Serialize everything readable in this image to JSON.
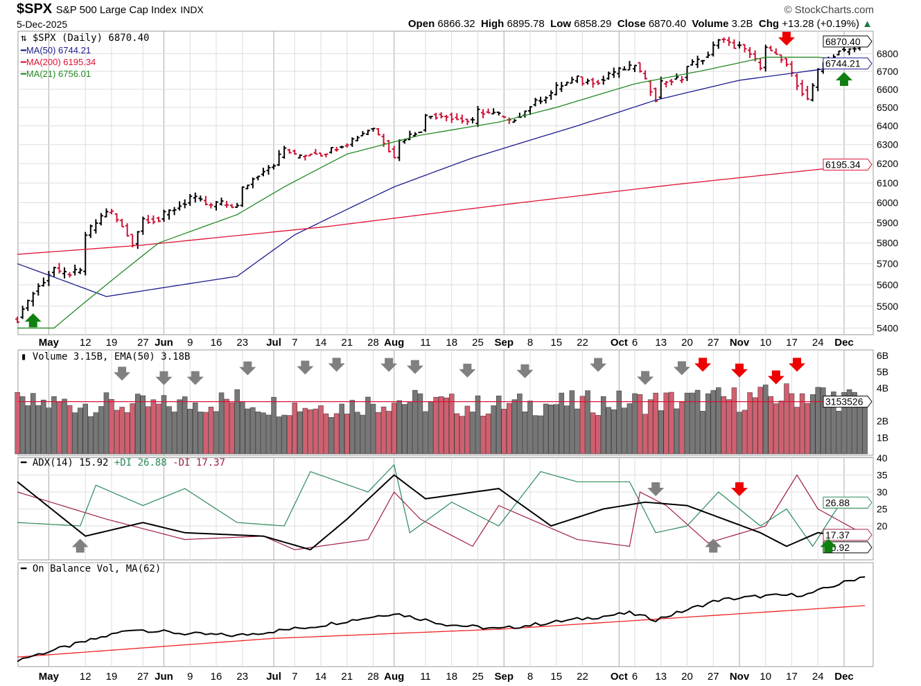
{
  "header": {
    "symbol": "$SPX",
    "name": "S&P 500 Large Cap Index",
    "exchange": "INDX",
    "date": "5-Dec-2025",
    "brand": "StockCharts.com",
    "open_label": "Open",
    "open": "6866.32",
    "high_label": "High",
    "high": "6895.78",
    "low_label": "Low",
    "low": "6858.29",
    "close_label": "Close",
    "close": "6870.40",
    "volume_label": "Volume",
    "volume": "3.2B",
    "chg_label": "Chg",
    "chg": "+13.28 (+0.19%)"
  },
  "legend": {
    "price": "$SPX (Daily) 6870.40",
    "ma50": "MA(50) 6744.21",
    "ma200": "MA(200) 6195.34",
    "ma21": "MA(21) 6756.01",
    "volume": "Volume 3.15B, EMA(50) 3.18B",
    "adx": "ADX(14) 15.92",
    "pdi": "+DI 26.88",
    "mdi": "-DI 17.37",
    "obv": "On Balance Vol, MA(62)"
  },
  "colors": {
    "up": "#000000",
    "down": "#cc1133",
    "ma50": "#1a1a8c",
    "ma200": "#dd1133",
    "ma21": "#228822",
    "vol_up": "#777777",
    "vol_down": "#d06070",
    "adx": "#000000",
    "pdi": "#2a8a5a",
    "mdi": "#a02040",
    "obv_ma": "#ee2222",
    "arrow_gray": "#808080",
    "arrow_red": "#ee0000",
    "arrow_green": "#108010"
  },
  "chart_data": [
    {
      "type": "ohlc",
      "scale": "log",
      "ylim": [
        5370,
        6930
      ],
      "yticks": [
        5400,
        5500,
        5600,
        5700,
        5800,
        5900,
        6000,
        6100,
        6200,
        6300,
        6400,
        6500,
        6600,
        6700,
        6800
      ],
      "value_tags": [
        {
          "text": "6870.40",
          "value": 6870.4
        },
        {
          "text": "6744.21",
          "value": 6744.21
        },
        {
          "text": "6195.34",
          "value": 6195.34
        }
      ],
      "closes": [
        [
          "2025-04-23",
          5440
        ],
        [
          "2025-04-25",
          5530
        ],
        [
          "2025-04-28",
          5560
        ],
        [
          "2025-05-02",
          5680
        ],
        [
          "2025-05-05",
          5650
        ],
        [
          "2025-05-09",
          5660
        ],
        [
          "2025-05-12",
          5840
        ],
        [
          "2025-05-16",
          5960
        ],
        [
          "2025-05-19",
          5950
        ],
        [
          "2025-05-23",
          5800
        ],
        [
          "2025-05-27",
          5920
        ],
        [
          "2025-05-30",
          5910
        ],
        [
          "2025-06-02",
          5940
        ],
        [
          "2025-06-06",
          6000
        ],
        [
          "2025-06-09",
          6030
        ],
        [
          "2025-06-13",
          5980
        ],
        [
          "2025-06-16",
          6000
        ],
        [
          "2025-06-20",
          5980
        ],
        [
          "2025-06-23",
          6070
        ],
        [
          "2025-06-27",
          6170
        ],
        [
          "2025-07-01",
          6200
        ],
        [
          "2025-07-03",
          6280
        ],
        [
          "2025-07-07",
          6240
        ],
        [
          "2025-07-11",
          6260
        ],
        [
          "2025-07-14",
          6250
        ],
        [
          "2025-07-18",
          6300
        ],
        [
          "2025-07-21",
          6310
        ],
        [
          "2025-07-25",
          6380
        ],
        [
          "2025-07-28",
          6390
        ],
        [
          "2025-08-01",
          6240
        ],
        [
          "2025-08-04",
          6320
        ],
        [
          "2025-08-08",
          6380
        ],
        [
          "2025-08-11",
          6450
        ],
        [
          "2025-08-15",
          6460
        ],
        [
          "2025-08-18",
          6440
        ],
        [
          "2025-08-22",
          6420
        ],
        [
          "2025-08-25",
          6480
        ],
        [
          "2025-08-29",
          6460
        ],
        [
          "2025-09-02",
          6420
        ],
        [
          "2025-09-05",
          6480
        ],
        [
          "2025-09-08",
          6510
        ],
        [
          "2025-09-12",
          6580
        ],
        [
          "2025-09-15",
          6610
        ],
        [
          "2025-09-19",
          6660
        ],
        [
          "2025-09-22",
          6640
        ],
        [
          "2025-09-26",
          6650
        ],
        [
          "2025-09-29",
          6690
        ],
        [
          "2025-10-03",
          6720
        ],
        [
          "2025-10-06",
          6740
        ],
        [
          "2025-10-10",
          6550
        ],
        [
          "2025-10-13",
          6640
        ],
        [
          "2025-10-17",
          6660
        ],
        [
          "2025-10-20",
          6730
        ],
        [
          "2025-10-24",
          6790
        ],
        [
          "2025-10-28",
          6890
        ],
        [
          "2025-10-31",
          6840
        ],
        [
          "2025-11-03",
          6850
        ],
        [
          "2025-11-07",
          6730
        ],
        [
          "2025-11-10",
          6830
        ],
        [
          "2025-11-14",
          6740
        ],
        [
          "2025-11-17",
          6680
        ],
        [
          "2025-11-20",
          6540
        ],
        [
          "2025-11-24",
          6700
        ],
        [
          "2025-11-28",
          6820
        ],
        [
          "2025-12-01",
          6810
        ],
        [
          "2025-12-05",
          6870.4
        ]
      ],
      "ma50": [
        [
          "2025-04-23",
          5700
        ],
        [
          "2025-05-16",
          5545
        ],
        [
          "2025-06-20",
          5640
        ],
        [
          "2025-07-07",
          5840
        ],
        [
          "2025-08-01",
          6080
        ],
        [
          "2025-08-22",
          6230
        ],
        [
          "2025-09-19",
          6400
        ],
        [
          "2025-10-10",
          6540
        ],
        [
          "2025-11-03",
          6650
        ],
        [
          "2025-12-05",
          6744.21
        ]
      ],
      "ma200": [
        [
          "2025-04-23",
          5745
        ],
        [
          "2025-05-27",
          5790
        ],
        [
          "2025-07-15",
          5880
        ],
        [
          "2025-09-01",
          5990
        ],
        [
          "2025-10-15",
          6090
        ],
        [
          "2025-12-05",
          6195.34
        ]
      ],
      "ma21": [
        [
          "2025-04-23",
          5400
        ],
        [
          "2025-05-02",
          5400
        ],
        [
          "2025-05-16",
          5600
        ],
        [
          "2025-05-30",
          5800
        ],
        [
          "2025-06-20",
          5940
        ],
        [
          "2025-07-03",
          6080
        ],
        [
          "2025-07-21",
          6250
        ],
        [
          "2025-08-08",
          6350
        ],
        [
          "2025-08-29",
          6420
        ],
        [
          "2025-09-15",
          6500
        ],
        [
          "2025-10-06",
          6630
        ],
        [
          "2025-10-24",
          6710
        ],
        [
          "2025-11-10",
          6780
        ],
        [
          "2025-11-24",
          6780
        ],
        [
          "2025-12-05",
          6756.01
        ]
      ]
    },
    {
      "type": "bar",
      "ylim": [
        0,
        6.2
      ],
      "yticks": [
        {
          "v": 1,
          "t": "1B"
        },
        {
          "v": 2,
          "t": "2B"
        },
        {
          "v": 4,
          "t": "4B"
        },
        {
          "v": 5,
          "t": "5B"
        },
        {
          "v": 6,
          "t": "6B"
        }
      ],
      "unit": "billions",
      "value_tag": "3153526",
      "ema": 3.18,
      "volume": [
        [
          "2025-04-23",
          3.0
        ],
        [
          "2025-05-05",
          3.1
        ],
        [
          "2025-05-16",
          3.0
        ],
        [
          "2025-05-30",
          2.9
        ],
        [
          "2025-06-20",
          3.3
        ],
        [
          "2025-06-27",
          3.0
        ],
        [
          "2025-07-18",
          2.9
        ],
        [
          "2025-08-01",
          3.3
        ],
        [
          "2025-08-22",
          2.9
        ],
        [
          "2025-09-19",
          3.1
        ],
        [
          "2025-10-10",
          3.2
        ],
        [
          "2025-11-07",
          3.4
        ],
        [
          "2025-11-21",
          3.7
        ],
        [
          "2025-12-05",
          3.15
        ]
      ]
    },
    {
      "type": "line",
      "ylim": [
        10,
        40
      ],
      "yticks": [
        20,
        25,
        30,
        35,
        40
      ],
      "value_tags": [
        {
          "text": "26.88",
          "value": 26.88
        },
        {
          "text": "17.37",
          "value": 17.37
        },
        {
          "text": "15.92",
          "value": 15.92
        }
      ],
      "adx": [
        [
          "2025-04-23",
          33
        ],
        [
          "2025-05-12",
          17
        ],
        [
          "2025-05-27",
          21
        ],
        [
          "2025-06-06",
          18
        ],
        [
          "2025-06-27",
          17
        ],
        [
          "2025-07-10",
          13
        ],
        [
          "2025-07-21",
          22
        ],
        [
          "2025-08-01",
          35
        ],
        [
          "2025-08-11",
          28
        ],
        [
          "2025-08-29",
          31
        ],
        [
          "2025-09-12",
          20
        ],
        [
          "2025-09-26",
          25
        ],
        [
          "2025-10-08",
          27
        ],
        [
          "2025-10-20",
          26
        ],
        [
          "2025-11-07",
          18
        ],
        [
          "2025-11-14",
          14
        ],
        [
          "2025-11-24",
          18
        ],
        [
          "2025-12-05",
          16
        ]
      ],
      "pdi": [
        [
          "2025-04-23",
          21
        ],
        [
          "2025-05-09",
          20
        ],
        [
          "2025-05-14",
          32
        ],
        [
          "2025-05-27",
          26
        ],
        [
          "2025-06-06",
          31
        ],
        [
          "2025-06-20",
          21
        ],
        [
          "2025-07-03",
          20
        ],
        [
          "2025-07-10",
          36
        ],
        [
          "2025-07-25",
          30
        ],
        [
          "2025-08-01",
          38
        ],
        [
          "2025-08-06",
          18
        ],
        [
          "2025-08-18",
          27
        ],
        [
          "2025-08-29",
          20
        ],
        [
          "2025-09-10",
          36
        ],
        [
          "2025-09-19",
          33
        ],
        [
          "2025-10-03",
          33
        ],
        [
          "2025-10-10",
          18
        ],
        [
          "2025-10-20",
          20
        ],
        [
          "2025-10-28",
          30
        ],
        [
          "2025-11-07",
          20
        ],
        [
          "2025-11-14",
          25
        ],
        [
          "2025-11-21",
          14
        ],
        [
          "2025-11-28",
          26
        ],
        [
          "2025-12-05",
          26.88
        ]
      ],
      "mdi": [
        [
          "2025-04-23",
          30
        ],
        [
          "2025-05-16",
          22
        ],
        [
          "2025-06-06",
          16
        ],
        [
          "2025-06-27",
          17
        ],
        [
          "2025-07-07",
          13
        ],
        [
          "2025-07-25",
          16
        ],
        [
          "2025-08-01",
          30
        ],
        [
          "2025-08-08",
          22
        ],
        [
          "2025-08-22",
          14
        ],
        [
          "2025-08-29",
          26
        ],
        [
          "2025-09-19",
          16
        ],
        [
          "2025-10-03",
          14
        ],
        [
          "2025-10-07",
          30
        ],
        [
          "2025-10-14",
          26
        ],
        [
          "2025-10-24",
          15
        ],
        [
          "2025-11-10",
          20
        ],
        [
          "2025-11-18",
          35
        ],
        [
          "2025-11-24",
          25
        ],
        [
          "2025-12-05",
          17.37
        ]
      ]
    },
    {
      "type": "line",
      "unit": "relative",
      "obv": [
        [
          "2025-04-23",
          2
        ],
        [
          "2025-05-09",
          20
        ],
        [
          "2025-05-23",
          35
        ],
        [
          "2025-06-06",
          30
        ],
        [
          "2025-06-20",
          28
        ],
        [
          "2025-07-11",
          38
        ],
        [
          "2025-08-01",
          52
        ],
        [
          "2025-08-15",
          40
        ],
        [
          "2025-08-29",
          35
        ],
        [
          "2025-09-12",
          42
        ],
        [
          "2025-10-03",
          52
        ],
        [
          "2025-10-10",
          45
        ],
        [
          "2025-10-28",
          66
        ],
        [
          "2025-11-07",
          70
        ],
        [
          "2025-11-20",
          72
        ],
        [
          "2025-12-05",
          92
        ]
      ],
      "obv_ma": [
        [
          "2025-04-23",
          5
        ],
        [
          "2025-07-01",
          25
        ],
        [
          "2025-09-01",
          35
        ],
        [
          "2025-12-05",
          60
        ]
      ]
    }
  ],
  "xticks": [
    {
      "d": "2025-05-01",
      "t": "May",
      "m": true
    },
    {
      "d": "2025-05-12",
      "t": "12"
    },
    {
      "d": "2025-05-19",
      "t": "19"
    },
    {
      "d": "2025-05-27",
      "t": "27"
    },
    {
      "d": "2025-06-02",
      "t": "Jun",
      "m": true
    },
    {
      "d": "2025-06-09",
      "t": "9"
    },
    {
      "d": "2025-06-16",
      "t": "16"
    },
    {
      "d": "2025-06-23",
      "t": "23"
    },
    {
      "d": "2025-07-01",
      "t": "Jul",
      "m": true
    },
    {
      "d": "2025-07-07",
      "t": "7"
    },
    {
      "d": "2025-07-14",
      "t": "14"
    },
    {
      "d": "2025-07-21",
      "t": "21"
    },
    {
      "d": "2025-07-28",
      "t": "28"
    },
    {
      "d": "2025-08-01",
      "t": "Aug",
      "m": true
    },
    {
      "d": "2025-08-11",
      "t": "11"
    },
    {
      "d": "2025-08-18",
      "t": "18"
    },
    {
      "d": "2025-08-25",
      "t": "25"
    },
    {
      "d": "2025-09-01",
      "t": "Sep",
      "m": true
    },
    {
      "d": "2025-09-08",
      "t": "8"
    },
    {
      "d": "2025-09-15",
      "t": "15"
    },
    {
      "d": "2025-09-22",
      "t": "22"
    },
    {
      "d": "2025-10-01",
      "t": "Oct",
      "m": true
    },
    {
      "d": "2025-10-06",
      "t": "6"
    },
    {
      "d": "2025-10-13",
      "t": "13"
    },
    {
      "d": "2025-10-20",
      "t": "20"
    },
    {
      "d": "2025-10-27",
      "t": "27"
    },
    {
      "d": "2025-11-03",
      "t": "Nov",
      "m": true
    },
    {
      "d": "2025-11-10",
      "t": "10"
    },
    {
      "d": "2025-11-17",
      "t": "17"
    },
    {
      "d": "2025-11-24",
      "t": "24"
    },
    {
      "d": "2025-12-01",
      "t": "Dec",
      "m": true
    }
  ],
  "arrows": [
    {
      "panel": 0,
      "d": "2025-04-28",
      "dir": "up",
      "c": "arrow_green"
    },
    {
      "panel": 0,
      "d": "2025-11-14",
      "dir": "down",
      "c": "arrow_red"
    },
    {
      "panel": 0,
      "d": "2025-12-01",
      "dir": "up",
      "c": "arrow_green"
    },
    {
      "panel": 1,
      "d": "2025-05-21",
      "dir": "down",
      "c": "arrow_gray"
    },
    {
      "panel": 1,
      "d": "2025-06-02",
      "dir": "down",
      "c": "arrow_gray"
    },
    {
      "panel": 1,
      "d": "2025-06-10",
      "dir": "down",
      "c": "arrow_gray"
    },
    {
      "panel": 1,
      "d": "2025-06-24",
      "dir": "down",
      "c": "arrow_gray"
    },
    {
      "panel": 1,
      "d": "2025-07-09",
      "dir": "down",
      "c": "arrow_gray"
    },
    {
      "panel": 1,
      "d": "2025-07-17",
      "dir": "down",
      "c": "arrow_gray"
    },
    {
      "panel": 1,
      "d": "2025-07-31",
      "dir": "down",
      "c": "arrow_gray"
    },
    {
      "panel": 1,
      "d": "2025-08-07",
      "dir": "down",
      "c": "arrow_gray"
    },
    {
      "panel": 1,
      "d": "2025-08-21",
      "dir": "down",
      "c": "arrow_gray"
    },
    {
      "panel": 1,
      "d": "2025-09-05",
      "dir": "down",
      "c": "arrow_gray"
    },
    {
      "panel": 1,
      "d": "2025-09-25",
      "dir": "down",
      "c": "arrow_gray"
    },
    {
      "panel": 1,
      "d": "2025-10-08",
      "dir": "down",
      "c": "arrow_gray"
    },
    {
      "panel": 1,
      "d": "2025-10-17",
      "dir": "down",
      "c": "arrow_gray"
    },
    {
      "panel": 1,
      "d": "2025-10-23",
      "dir": "down",
      "c": "arrow_red"
    },
    {
      "panel": 1,
      "d": "2025-11-03",
      "dir": "down",
      "c": "arrow_red"
    },
    {
      "panel": 1,
      "d": "2025-11-12",
      "dir": "down",
      "c": "arrow_red"
    },
    {
      "panel": 1,
      "d": "2025-11-18",
      "dir": "down",
      "c": "arrow_red"
    },
    {
      "panel": 2,
      "d": "2025-05-09",
      "dir": "up",
      "c": "arrow_gray"
    },
    {
      "panel": 2,
      "d": "2025-10-10",
      "dir": "down",
      "c": "arrow_gray"
    },
    {
      "panel": 2,
      "d": "2025-10-27",
      "dir": "up",
      "c": "arrow_gray"
    },
    {
      "panel": 2,
      "d": "2025-11-03",
      "dir": "down",
      "c": "arrow_red"
    },
    {
      "panel": 2,
      "d": "2025-11-26",
      "dir": "up",
      "c": "arrow_green"
    }
  ]
}
